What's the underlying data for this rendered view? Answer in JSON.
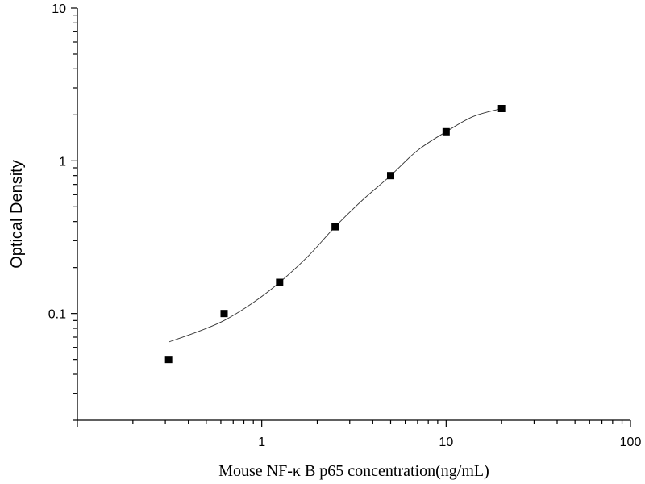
{
  "chart_data": {
    "type": "scatter",
    "title": "",
    "xlabel": "Mouse NF-κ B p65 concentration(ng/mL)",
    "ylabel": "Optical Density",
    "x_scale": "log",
    "y_scale": "log",
    "xlim": [
      0.1,
      100
    ],
    "ylim": [
      0.02,
      10
    ],
    "x_tick_labels": [
      "1",
      "10",
      "100"
    ],
    "y_tick_labels": [
      "0.1",
      "1",
      "10"
    ],
    "grid": false,
    "legend": "none",
    "series": [
      {
        "x": [
          0.3125,
          0.625,
          1.25,
          2.5,
          5,
          10,
          20
        ],
        "y": [
          0.05,
          0.1,
          0.16,
          0.37,
          0.8,
          1.55,
          2.2
        ]
      }
    ],
    "fit_curve": {
      "type": "four-parameter logistic",
      "x": [
        0.3125,
        0.45,
        0.625,
        0.9,
        1.25,
        1.8,
        2.5,
        3.5,
        5,
        7,
        10,
        14,
        20
      ],
      "y": [
        0.065,
        0.076,
        0.09,
        0.118,
        0.16,
        0.24,
        0.37,
        0.55,
        0.8,
        1.17,
        1.55,
        1.95,
        2.2
      ]
    }
  }
}
